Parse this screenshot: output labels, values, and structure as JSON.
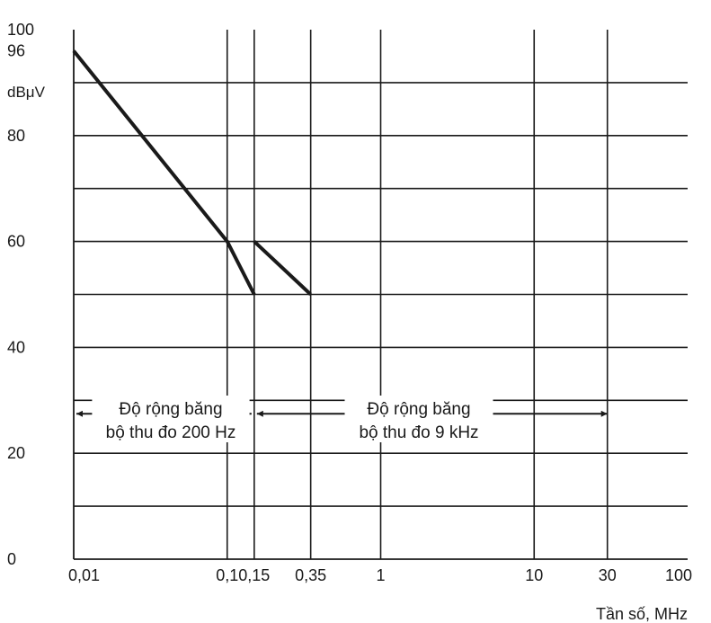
{
  "chart_data": {
    "type": "line",
    "x_scale": "log",
    "y_unit_label": "dBμV",
    "xlabel": "Tần số, MHz",
    "xlim": [
      0.01,
      100
    ],
    "ylim": [
      0,
      100
    ],
    "x_ticks": [
      {
        "value": 0.01,
        "label": "0,01"
      },
      {
        "value": 0.1,
        "label": "0,1"
      },
      {
        "value": 0.15,
        "label": "0,15"
      },
      {
        "value": 0.35,
        "label": "0,35"
      },
      {
        "value": 1,
        "label": "1"
      },
      {
        "value": 10,
        "label": "10"
      },
      {
        "value": 30,
        "label": "30"
      },
      {
        "value": 100,
        "label": "100"
      }
    ],
    "y_ticks": [
      {
        "value": 0,
        "label": "0"
      },
      {
        "value": 20,
        "label": "20"
      },
      {
        "value": 40,
        "label": "40"
      },
      {
        "value": 60,
        "label": "60"
      },
      {
        "value": 80,
        "label": "80"
      },
      {
        "value": 96,
        "label": "96"
      },
      {
        "value": 100,
        "label": "100"
      }
    ],
    "y_gridlines": [
      10,
      20,
      30,
      40,
      50,
      60,
      70,
      80,
      90
    ],
    "grid": true,
    "series": [
      {
        "x": [
          0.01,
          0.1,
          0.15
        ],
        "y": [
          96,
          60,
          50
        ]
      },
      {
        "x": [
          0.15,
          0.35
        ],
        "y": [
          60,
          50
        ]
      }
    ],
    "annotations": [
      {
        "line1": "Độ rộng băng",
        "line2": "bộ thu đo 200 Hz",
        "x_range": [
          0.01,
          0.15
        ],
        "y": 30
      },
      {
        "line1": "Độ rộng băng",
        "line2": "bộ thu đo 9 kHz",
        "x_range": [
          0.15,
          30
        ],
        "y": 30
      }
    ]
  }
}
